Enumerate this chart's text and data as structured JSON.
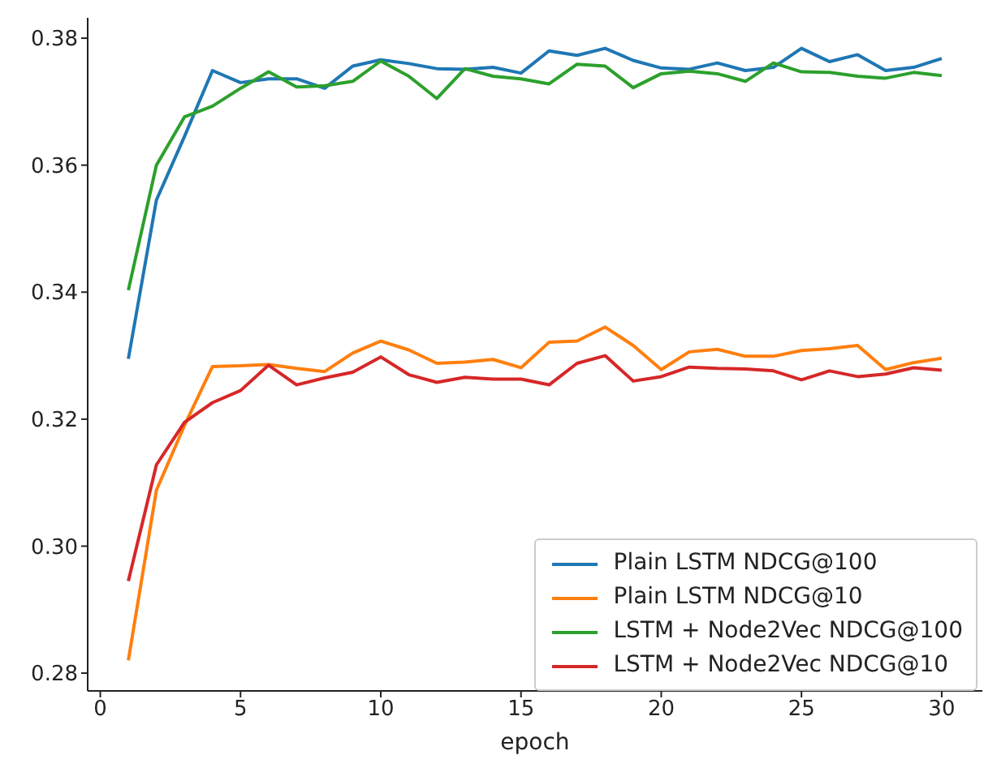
{
  "chart_data": {
    "type": "line",
    "xlabel": "epoch",
    "x": [
      1,
      2,
      3,
      4,
      5,
      6,
      7,
      8,
      9,
      10,
      11,
      12,
      13,
      14,
      15,
      16,
      17,
      18,
      19,
      20,
      21,
      22,
      23,
      24,
      25,
      26,
      27,
      28,
      29,
      30
    ],
    "xlim": [
      -0.45,
      31.45
    ],
    "xticks": [
      0,
      5,
      10,
      15,
      20,
      25,
      30
    ],
    "ylim": [
      0.2772,
      0.3832
    ],
    "yticks": [
      {
        "value": 0.28,
        "label": "0.28"
      },
      {
        "value": 0.3,
        "label": "0.30"
      },
      {
        "value": 0.32,
        "label": "0.32"
      },
      {
        "value": 0.34,
        "label": "0.34"
      },
      {
        "value": 0.36,
        "label": "0.36"
      },
      {
        "value": 0.38,
        "label": "0.38"
      }
    ],
    "grid": false,
    "legend": "bottom right",
    "marker": "none",
    "line_style": "solid",
    "series": [
      {
        "name": "Plain LSTM NDCG@100",
        "color": "#1f77b4",
        "values": [
          0.3295,
          0.3545,
          0.3645,
          0.3749,
          0.373,
          0.3736,
          0.3736,
          0.3721,
          0.3756,
          0.3766,
          0.376,
          0.3752,
          0.3751,
          0.3754,
          0.3745,
          0.378,
          0.3773,
          0.3784,
          0.3765,
          0.3753,
          0.3751,
          0.3761,
          0.3749,
          0.3754,
          0.3784,
          0.3763,
          0.3774,
          0.3749,
          0.3754,
          0.3768
        ]
      },
      {
        "name": "Plain LSTM NDCG@10",
        "color": "#ff7f0e",
        "values": [
          0.282,
          0.3088,
          0.319,
          0.3283,
          0.3284,
          0.3286,
          0.328,
          0.3275,
          0.3304,
          0.3323,
          0.3309,
          0.3288,
          0.329,
          0.3294,
          0.3281,
          0.3321,
          0.3323,
          0.3345,
          0.3316,
          0.3278,
          0.3306,
          0.331,
          0.3299,
          0.3299,
          0.3308,
          0.3311,
          0.3316,
          0.3278,
          0.3289,
          0.3296
        ]
      },
      {
        "name": "LSTM + Node2Vec NDCG@100",
        "color": "#2ca02c",
        "values": [
          0.3403,
          0.36,
          0.3676,
          0.3693,
          0.3721,
          0.3747,
          0.3723,
          0.3725,
          0.3732,
          0.3764,
          0.374,
          0.3705,
          0.3752,
          0.374,
          0.3736,
          0.3728,
          0.3759,
          0.3756,
          0.3722,
          0.3744,
          0.3748,
          0.3744,
          0.3732,
          0.3761,
          0.3747,
          0.3746,
          0.374,
          0.3737,
          0.3746,
          0.3741
        ]
      },
      {
        "name": "LSTM + Node2Vec NDCG@10",
        "color": "#d62728",
        "values": [
          0.2945,
          0.3128,
          0.3195,
          0.3226,
          0.3245,
          0.3285,
          0.3254,
          0.3265,
          0.3274,
          0.3298,
          0.327,
          0.3258,
          0.3266,
          0.3263,
          0.3263,
          0.3254,
          0.3288,
          0.33,
          0.326,
          0.3267,
          0.3282,
          0.328,
          0.3279,
          0.3276,
          0.3262,
          0.3276,
          0.3267,
          0.3271,
          0.3281,
          0.3277
        ]
      }
    ]
  }
}
